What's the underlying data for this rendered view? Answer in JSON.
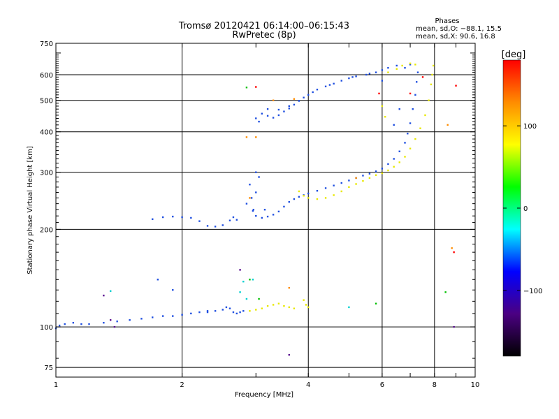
{
  "chart_data": {
    "type": "scatter",
    "title": "Tromsø 20120421 06:14:00–06:15:43",
    "subtitle": "RwPretec (8p)",
    "xlabel": "Frequency [MHz]",
    "ylabel": "Stationary phase Virtual Height [km]",
    "x_scale": "log",
    "y_scale": "log",
    "xlim": [
      1,
      10
    ],
    "ylim": [
      70,
      750
    ],
    "x_ticks": [
      1,
      2,
      4,
      6,
      8,
      10
    ],
    "x_tick_labels": [
      "1",
      "2",
      "4",
      "6",
      "8",
      "10"
    ],
    "y_ticks": [
      75,
      100,
      200,
      300,
      400,
      500,
      600,
      750
    ],
    "y_tick_labels": [
      "75",
      "100",
      "200",
      "300",
      "400",
      "500",
      "600",
      "750"
    ],
    "grid": true,
    "phases_box": {
      "heading": "Phases",
      "line_o": "mean, sd,O: −88.1, 15.5",
      "line_x": "mean, sd,X:  90.6, 16.8"
    },
    "colorbar": {
      "label": "[deg]",
      "range": [
        -180,
        180
      ],
      "ticks": [
        100,
        0,
        -100
      ],
      "tick_labels": [
        "100",
        "0",
        "−100"
      ],
      "colors": [
        "#000000",
        "#4b0082",
        "#0000ff",
        "#00ffff",
        "#00ff00",
        "#ffff00",
        "#ff8c00",
        "#ff0000"
      ]
    },
    "series": [
      {
        "color": "#1f4fe0",
        "points": [
          [
            1.0,
            99
          ],
          [
            1.02,
            101
          ],
          [
            1.05,
            102
          ],
          [
            1.1,
            103
          ],
          [
            1.15,
            102
          ],
          [
            1.2,
            102
          ],
          [
            1.3,
            103
          ],
          [
            1.4,
            104
          ],
          [
            1.5,
            105
          ],
          [
            1.6,
            106
          ],
          [
            1.7,
            107
          ],
          [
            1.8,
            108
          ],
          [
            1.9,
            108
          ],
          [
            2.0,
            109
          ],
          [
            2.1,
            110
          ],
          [
            2.2,
            111
          ],
          [
            2.3,
            111
          ],
          [
            2.4,
            112
          ],
          [
            2.5,
            113
          ],
          [
            2.55,
            115
          ],
          [
            2.6,
            114
          ],
          [
            2.65,
            111
          ],
          [
            2.7,
            110
          ],
          [
            2.75,
            111
          ],
          [
            2.8,
            112
          ],
          [
            1.7,
            215
          ],
          [
            1.8,
            218
          ],
          [
            1.9,
            219
          ],
          [
            2.0,
            218
          ],
          [
            2.1,
            217
          ],
          [
            2.2,
            212
          ],
          [
            2.3,
            205
          ],
          [
            2.4,
            204
          ],
          [
            2.5,
            206
          ],
          [
            2.6,
            213
          ],
          [
            2.65,
            218
          ],
          [
            2.7,
            214
          ],
          [
            2.85,
            240
          ],
          [
            2.9,
            275
          ],
          [
            2.93,
            250
          ],
          [
            2.96,
            230
          ],
          [
            3.0,
            220
          ],
          [
            3.1,
            217
          ],
          [
            3.2,
            219
          ],
          [
            3.3,
            222
          ],
          [
            3.4,
            227
          ],
          [
            3.5,
            235
          ],
          [
            3.6,
            243
          ],
          [
            3.7,
            248
          ],
          [
            3.8,
            252
          ],
          [
            3.9,
            255
          ],
          [
            4.0,
            258
          ],
          [
            4.2,
            263
          ],
          [
            4.4,
            268
          ],
          [
            4.6,
            273
          ],
          [
            4.8,
            278
          ],
          [
            5.0,
            283
          ],
          [
            5.2,
            288
          ],
          [
            5.4,
            293
          ],
          [
            5.6,
            297
          ],
          [
            5.8,
            302
          ],
          [
            6.0,
            308
          ],
          [
            6.2,
            318
          ],
          [
            6.4,
            330
          ],
          [
            6.6,
            348
          ],
          [
            6.8,
            370
          ],
          [
            6.9,
            395
          ],
          [
            7.0,
            425
          ],
          [
            7.1,
            470
          ],
          [
            7.2,
            520
          ],
          [
            7.25,
            570
          ],
          [
            7.3,
            610
          ],
          [
            3.0,
            440
          ],
          [
            3.1,
            455
          ],
          [
            3.2,
            448
          ],
          [
            3.3,
            442
          ],
          [
            3.4,
            450
          ],
          [
            3.5,
            462
          ],
          [
            3.6,
            472
          ],
          [
            3.7,
            485
          ],
          [
            3.8,
            498
          ],
          [
            3.9,
            510
          ],
          [
            4.0,
            520
          ],
          [
            4.2,
            540
          ],
          [
            4.4,
            552
          ],
          [
            4.6,
            563
          ],
          [
            4.8,
            575
          ],
          [
            5.0,
            585
          ],
          [
            5.2,
            593
          ],
          [
            5.5,
            600
          ],
          [
            5.8,
            610
          ],
          [
            6.0,
            620
          ],
          [
            6.2,
            630
          ],
          [
            6.5,
            640
          ],
          [
            6.8,
            630
          ],
          [
            7.0,
            645
          ],
          [
            3.05,
            430
          ],
          [
            3.2,
            470
          ],
          [
            3.4,
            468
          ],
          [
            3.6,
            480
          ],
          [
            4.1,
            530
          ],
          [
            4.5,
            558
          ],
          [
            5.1,
            590
          ],
          [
            5.6,
            605
          ],
          [
            2.3,
            112
          ],
          [
            1.9,
            130
          ],
          [
            1.75,
            140
          ],
          [
            3.0,
            300
          ],
          [
            3.05,
            290
          ],
          [
            3.0,
            260
          ],
          [
            2.95,
            228
          ],
          [
            3.15,
            230
          ],
          [
            6.0,
            575
          ],
          [
            6.6,
            470
          ],
          [
            6.4,
            420
          ]
        ]
      },
      {
        "color": "#e8e800",
        "points": [
          [
            2.9,
            112
          ],
          [
            3.0,
            113
          ],
          [
            3.1,
            114
          ],
          [
            3.2,
            116
          ],
          [
            3.3,
            117
          ],
          [
            3.4,
            118
          ],
          [
            3.5,
            116
          ],
          [
            3.6,
            115
          ],
          [
            3.7,
            114
          ],
          [
            3.9,
            121
          ],
          [
            3.95,
            117
          ],
          [
            4.0,
            115
          ],
          [
            3.8,
            262
          ],
          [
            3.9,
            254
          ],
          [
            4.0,
            250
          ],
          [
            4.2,
            248
          ],
          [
            4.4,
            250
          ],
          [
            4.6,
            255
          ],
          [
            4.8,
            262
          ],
          [
            5.0,
            270
          ],
          [
            5.2,
            276
          ],
          [
            5.4,
            282
          ],
          [
            5.6,
            288
          ],
          [
            5.8,
            294
          ],
          [
            6.0,
            298
          ],
          [
            6.2,
            304
          ],
          [
            6.4,
            312
          ],
          [
            6.6,
            322
          ],
          [
            6.8,
            335
          ],
          [
            7.0,
            355
          ],
          [
            7.2,
            380
          ],
          [
            7.4,
            410
          ],
          [
            7.6,
            450
          ],
          [
            7.75,
            500
          ],
          [
            7.85,
            560
          ],
          [
            7.9,
            600
          ],
          [
            7.95,
            640
          ],
          [
            6.2,
            610
          ],
          [
            6.5,
            625
          ],
          [
            6.7,
            640
          ],
          [
            7.0,
            650
          ],
          [
            7.2,
            645
          ],
          [
            6.0,
            480
          ],
          [
            6.1,
            445
          ]
        ]
      },
      {
        "color": "#ff8c00",
        "points": [
          [
            2.85,
            385
          ],
          [
            3.0,
            385
          ],
          [
            2.9,
            250
          ],
          [
            3.7,
            505
          ],
          [
            3.3,
            500
          ],
          [
            5.2,
            288
          ],
          [
            8.6,
            420
          ],
          [
            8.8,
            175
          ],
          [
            3.6,
            132
          ]
        ]
      },
      {
        "color": "#ff0000",
        "points": [
          [
            3.0,
            550
          ],
          [
            7.0,
            525
          ],
          [
            9.0,
            555
          ],
          [
            5.9,
            525
          ],
          [
            8.9,
            170
          ],
          [
            7.5,
            590
          ]
        ]
      },
      {
        "color": "#00d0d0",
        "points": [
          [
            2.75,
            128
          ],
          [
            2.8,
            138
          ],
          [
            2.85,
            122
          ],
          [
            1.35,
            129
          ],
          [
            2.95,
            140
          ],
          [
            5.0,
            115
          ]
        ]
      },
      {
        "color": "#00c000",
        "points": [
          [
            2.85,
            548
          ],
          [
            2.9,
            140
          ],
          [
            3.05,
            122
          ],
          [
            5.8,
            118
          ],
          [
            8.5,
            128
          ]
        ]
      },
      {
        "color": "#5a1090",
        "points": [
          [
            1.3,
            125
          ],
          [
            1.35,
            105
          ],
          [
            2.75,
            150
          ],
          [
            3.6,
            82
          ],
          [
            1.38,
            100
          ],
          [
            8.9,
            100
          ]
        ]
      }
    ]
  }
}
